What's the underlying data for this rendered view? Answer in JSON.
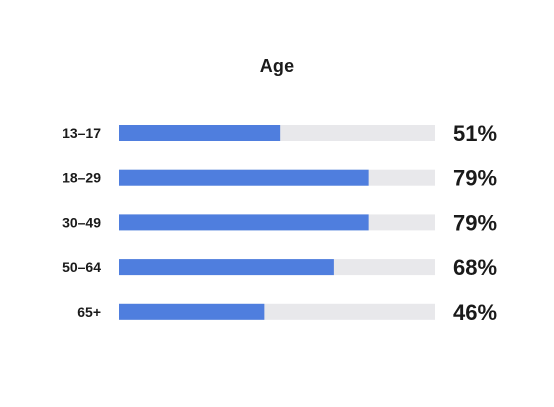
{
  "chart_data": {
    "type": "bar",
    "orientation": "horizontal",
    "title": "Age",
    "categories": [
      "13–17",
      "18–29",
      "30–49",
      "50–64",
      "65+"
    ],
    "values": [
      51,
      79,
      79,
      68,
      46
    ],
    "value_labels": [
      "51%",
      "79%",
      "79%",
      "68%",
      "46%"
    ],
    "unit": "%",
    "xlim": [
      0,
      100
    ],
    "grid": false,
    "legend": "none",
    "colors": {
      "bar": "#4f7ede",
      "track": "#e8e8eb",
      "text": "#1a1a1a"
    }
  }
}
